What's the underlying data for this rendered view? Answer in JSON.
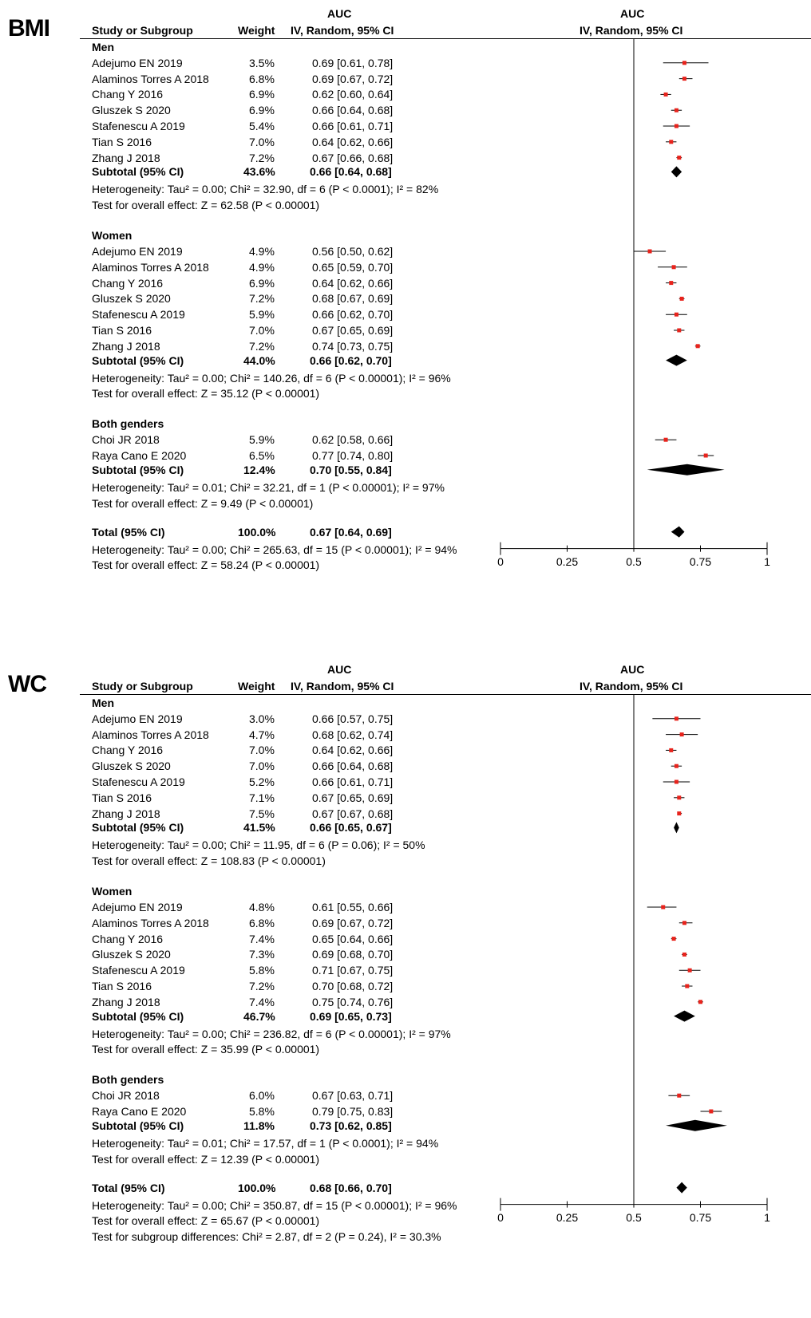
{
  "chart_data": [
    {
      "type": "forest",
      "panel_label": "BMI",
      "header": {
        "study_col": "Study or Subgroup",
        "weight_col": "Weight",
        "auc_top": "AUC",
        "auc_method": "IV, Random, 95% CI",
        "plot_top": "AUC",
        "plot_method": "IV, Random, 95% CI"
      },
      "xlim": [
        0,
        1
      ],
      "ticks": [
        "0",
        "0.25",
        "0.5",
        "0.75",
        "1"
      ],
      "tick_values": [
        0,
        0.25,
        0.5,
        0.75,
        1
      ],
      "reference_line": 0.5,
      "groups": [
        {
          "name": "Men",
          "studies": [
            {
              "study": "Adejumo EN 2019",
              "weight": "3.5%",
              "ci_text": "0.69 [0.61, 0.78]",
              "est": 0.69,
              "lo": 0.61,
              "hi": 0.78
            },
            {
              "study": "Alaminos Torres A 2018",
              "weight": "6.8%",
              "ci_text": "0.69 [0.67, 0.72]",
              "est": 0.69,
              "lo": 0.67,
              "hi": 0.72
            },
            {
              "study": "Chang Y 2016",
              "weight": "6.9%",
              "ci_text": "0.62 [0.60, 0.64]",
              "est": 0.62,
              "lo": 0.6,
              "hi": 0.64
            },
            {
              "study": "Gluszek S 2020",
              "weight": "6.9%",
              "ci_text": "0.66 [0.64, 0.68]",
              "est": 0.66,
              "lo": 0.64,
              "hi": 0.68
            },
            {
              "study": "Stafenescu A 2019",
              "weight": "5.4%",
              "ci_text": "0.66 [0.61, 0.71]",
              "est": 0.66,
              "lo": 0.61,
              "hi": 0.71
            },
            {
              "study": "Tian S 2016",
              "weight": "7.0%",
              "ci_text": "0.64 [0.62, 0.66]",
              "est": 0.64,
              "lo": 0.62,
              "hi": 0.66
            },
            {
              "study": "Zhang J 2018",
              "weight": "7.2%",
              "ci_text": "0.67 [0.66, 0.68]",
              "est": 0.67,
              "lo": 0.66,
              "hi": 0.68
            }
          ],
          "subtotal": {
            "label": "Subtotal (95% CI)",
            "weight": "43.6%",
            "ci_text": "0.66 [0.64, 0.68]",
            "est": 0.66,
            "lo": 0.64,
            "hi": 0.68
          },
          "heterogeneity": "Heterogeneity: Tau² = 0.00; Chi² = 32.90, df = 6 (P < 0.0001); I² = 82%",
          "overall_effect": "Test for overall effect: Z = 62.58 (P < 0.00001)"
        },
        {
          "name": "Women",
          "studies": [
            {
              "study": "Adejumo EN 2019",
              "weight": "4.9%",
              "ci_text": "0.56 [0.50, 0.62]",
              "est": 0.56,
              "lo": 0.5,
              "hi": 0.62
            },
            {
              "study": "Alaminos Torres A 2018",
              "weight": "4.9%",
              "ci_text": "0.65 [0.59, 0.70]",
              "est": 0.65,
              "lo": 0.59,
              "hi": 0.7
            },
            {
              "study": "Chang Y 2016",
              "weight": "6.9%",
              "ci_text": "0.64 [0.62, 0.66]",
              "est": 0.64,
              "lo": 0.62,
              "hi": 0.66
            },
            {
              "study": "Gluszek S 2020",
              "weight": "7.2%",
              "ci_text": "0.68 [0.67, 0.69]",
              "est": 0.68,
              "lo": 0.67,
              "hi": 0.69
            },
            {
              "study": "Stafenescu A 2019",
              "weight": "5.9%",
              "ci_text": "0.66 [0.62, 0.70]",
              "est": 0.66,
              "lo": 0.62,
              "hi": 0.7
            },
            {
              "study": "Tian S 2016",
              "weight": "7.0%",
              "ci_text": "0.67 [0.65, 0.69]",
              "est": 0.67,
              "lo": 0.65,
              "hi": 0.69
            },
            {
              "study": "Zhang J 2018",
              "weight": "7.2%",
              "ci_text": "0.74 [0.73, 0.75]",
              "est": 0.74,
              "lo": 0.73,
              "hi": 0.75
            }
          ],
          "subtotal": {
            "label": "Subtotal (95% CI)",
            "weight": "44.0%",
            "ci_text": "0.66 [0.62, 0.70]",
            "est": 0.66,
            "lo": 0.62,
            "hi": 0.7
          },
          "heterogeneity": "Heterogeneity: Tau² = 0.00; Chi² = 140.26, df = 6 (P < 0.00001); I² = 96%",
          "overall_effect": "Test for overall effect: Z = 35.12 (P < 0.00001)"
        },
        {
          "name": "Both genders",
          "studies": [
            {
              "study": "Choi JR 2018",
              "weight": "5.9%",
              "ci_text": "0.62 [0.58, 0.66]",
              "est": 0.62,
              "lo": 0.58,
              "hi": 0.66
            },
            {
              "study": "Raya Cano E 2020",
              "weight": "6.5%",
              "ci_text": "0.77 [0.74, 0.80]",
              "est": 0.77,
              "lo": 0.74,
              "hi": 0.8
            }
          ],
          "subtotal": {
            "label": "Subtotal (95% CI)",
            "weight": "12.4%",
            "ci_text": "0.70 [0.55, 0.84]",
            "est": 0.7,
            "lo": 0.55,
            "hi": 0.84
          },
          "heterogeneity": "Heterogeneity: Tau² = 0.01; Chi² = 32.21, df = 1 (P < 0.00001); I² = 97%",
          "overall_effect": "Test for overall effect: Z = 9.49 (P < 0.00001)"
        }
      ],
      "total": {
        "label": "Total (95% CI)",
        "weight": "100.0%",
        "ci_text": "0.67 [0.64, 0.69]",
        "est": 0.67,
        "lo": 0.64,
        "hi": 0.69
      },
      "total_heterogeneity": "Heterogeneity: Tau² = 0.00; Chi² = 265.63, df = 15 (P < 0.00001); I² = 94%",
      "total_overall_effect": "Test for overall effect: Z = 58.24 (P < 0.00001)",
      "subgroup_differences": "",
      "colors": {
        "study_marker": "#e8231c",
        "diamond": "#000000"
      }
    },
    {
      "type": "forest",
      "panel_label": "WC",
      "header": {
        "study_col": "Study or Subgroup",
        "weight_col": "Weight",
        "auc_top": "AUC",
        "auc_method": "IV, Random, 95% CI",
        "plot_top": "AUC",
        "plot_method": "IV, Random, 95% CI"
      },
      "xlim": [
        0,
        1
      ],
      "ticks": [
        "0",
        "0.25",
        "0.5",
        "0.75",
        "1"
      ],
      "tick_values": [
        0,
        0.25,
        0.5,
        0.75,
        1
      ],
      "reference_line": 0.5,
      "groups": [
        {
          "name": "Men",
          "studies": [
            {
              "study": "Adejumo EN 2019",
              "weight": "3.0%",
              "ci_text": "0.66 [0.57, 0.75]",
              "est": 0.66,
              "lo": 0.57,
              "hi": 0.75
            },
            {
              "study": "Alaminos Torres A 2018",
              "weight": "4.7%",
              "ci_text": "0.68 [0.62, 0.74]",
              "est": 0.68,
              "lo": 0.62,
              "hi": 0.74
            },
            {
              "study": "Chang Y 2016",
              "weight": "7.0%",
              "ci_text": "0.64 [0.62, 0.66]",
              "est": 0.64,
              "lo": 0.62,
              "hi": 0.66
            },
            {
              "study": "Gluszek S 2020",
              "weight": "7.0%",
              "ci_text": "0.66 [0.64, 0.68]",
              "est": 0.66,
              "lo": 0.64,
              "hi": 0.68
            },
            {
              "study": "Stafenescu A 2019",
              "weight": "5.2%",
              "ci_text": "0.66 [0.61, 0.71]",
              "est": 0.66,
              "lo": 0.61,
              "hi": 0.71
            },
            {
              "study": "Tian S 2016",
              "weight": "7.1%",
              "ci_text": "0.67 [0.65, 0.69]",
              "est": 0.67,
              "lo": 0.65,
              "hi": 0.69
            },
            {
              "study": "Zhang J 2018",
              "weight": "7.5%",
              "ci_text": "0.67 [0.67, 0.68]",
              "est": 0.67,
              "lo": 0.67,
              "hi": 0.68
            }
          ],
          "subtotal": {
            "label": "Subtotal (95% CI)",
            "weight": "41.5%",
            "ci_text": "0.66 [0.65, 0.67]",
            "est": 0.66,
            "lo": 0.65,
            "hi": 0.67
          },
          "heterogeneity": "Heterogeneity: Tau² = 0.00; Chi² = 11.95, df = 6 (P = 0.06); I² = 50%",
          "overall_effect": "Test for overall effect: Z = 108.83 (P < 0.00001)"
        },
        {
          "name": "Women",
          "studies": [
            {
              "study": "Adejumo EN 2019",
              "weight": "4.8%",
              "ci_text": "0.61 [0.55, 0.66]",
              "est": 0.61,
              "lo": 0.55,
              "hi": 0.66
            },
            {
              "study": "Alaminos Torres A 2018",
              "weight": "6.8%",
              "ci_text": "0.69 [0.67, 0.72]",
              "est": 0.69,
              "lo": 0.67,
              "hi": 0.72
            },
            {
              "study": "Chang Y 2016",
              "weight": "7.4%",
              "ci_text": "0.65 [0.64, 0.66]",
              "est": 0.65,
              "lo": 0.64,
              "hi": 0.66
            },
            {
              "study": "Gluszek S 2020",
              "weight": "7.3%",
              "ci_text": "0.69 [0.68, 0.70]",
              "est": 0.69,
              "lo": 0.68,
              "hi": 0.7
            },
            {
              "study": "Stafenescu A 2019",
              "weight": "5.8%",
              "ci_text": "0.71 [0.67, 0.75]",
              "est": 0.71,
              "lo": 0.67,
              "hi": 0.75
            },
            {
              "study": "Tian S 2016",
              "weight": "7.2%",
              "ci_text": "0.70 [0.68, 0.72]",
              "est": 0.7,
              "lo": 0.68,
              "hi": 0.72
            },
            {
              "study": "Zhang J 2018",
              "weight": "7.4%",
              "ci_text": "0.75 [0.74, 0.76]",
              "est": 0.75,
              "lo": 0.74,
              "hi": 0.76
            }
          ],
          "subtotal": {
            "label": "Subtotal (95% CI)",
            "weight": "46.7%",
            "ci_text": "0.69 [0.65, 0.73]",
            "est": 0.69,
            "lo": 0.65,
            "hi": 0.73
          },
          "heterogeneity": "Heterogeneity: Tau² = 0.00; Chi² = 236.82, df = 6 (P < 0.00001); I² = 97%",
          "overall_effect": "Test for overall effect: Z = 35.99 (P < 0.00001)"
        },
        {
          "name": "Both genders",
          "studies": [
            {
              "study": "Choi JR 2018",
              "weight": "6.0%",
              "ci_text": "0.67 [0.63, 0.71]",
              "est": 0.67,
              "lo": 0.63,
              "hi": 0.71
            },
            {
              "study": "Raya Cano E 2020",
              "weight": "5.8%",
              "ci_text": "0.79 [0.75, 0.83]",
              "est": 0.79,
              "lo": 0.75,
              "hi": 0.83
            }
          ],
          "subtotal": {
            "label": "Subtotal (95% CI)",
            "weight": "11.8%",
            "ci_text": "0.73 [0.62, 0.85]",
            "est": 0.73,
            "lo": 0.62,
            "hi": 0.85
          },
          "heterogeneity": "Heterogeneity: Tau² = 0.01; Chi² = 17.57, df = 1 (P < 0.0001); I² = 94%",
          "overall_effect": "Test for overall effect: Z = 12.39 (P < 0.00001)"
        }
      ],
      "total": {
        "label": "Total (95% CI)",
        "weight": "100.0%",
        "ci_text": "0.68 [0.66, 0.70]",
        "est": 0.68,
        "lo": 0.66,
        "hi": 0.7
      },
      "total_heterogeneity": "Heterogeneity: Tau² = 0.00; Chi² = 350.87, df = 15 (P < 0.00001); I² = 96%",
      "total_overall_effect": "Test for overall effect: Z = 65.67 (P < 0.00001)",
      "subgroup_differences": "Test for subgroup differences: Chi² = 2.87, df = 2 (P = 0.24), I² = 30.3%",
      "colors": {
        "study_marker": "#e8231c",
        "diamond": "#000000"
      }
    }
  ]
}
